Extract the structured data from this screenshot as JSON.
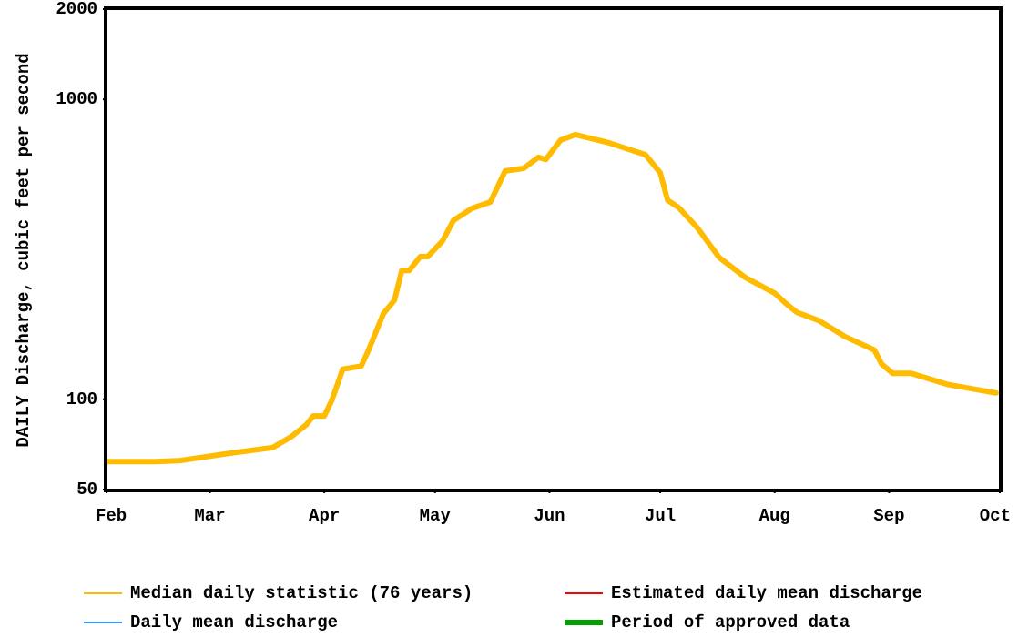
{
  "chart_data": {
    "type": "line",
    "ylabel": "DAILY Discharge, cubic feet per second",
    "yscale": "log",
    "ylim": [
      50,
      2000
    ],
    "yticks": [
      50,
      100,
      1000,
      2000
    ],
    "xlim": [
      0,
      242
    ],
    "xticks": [
      {
        "value": 0,
        "label": "Feb"
      },
      {
        "value": 28,
        "label": "Mar"
      },
      {
        "value": 59,
        "label": "Apr"
      },
      {
        "value": 89,
        "label": "May"
      },
      {
        "value": 120,
        "label": "Jun"
      },
      {
        "value": 150,
        "label": "Jul"
      },
      {
        "value": 181,
        "label": "Aug"
      },
      {
        "value": 212,
        "label": "Sep"
      },
      {
        "value": 242,
        "label": "Oct"
      }
    ],
    "x": [
      0,
      13,
      20,
      33,
      45,
      50,
      54,
      56,
      59,
      61,
      64,
      69,
      71,
      75,
      78,
      80,
      82,
      85,
      87,
      91,
      94,
      99,
      104,
      108,
      113,
      117,
      119,
      123,
      127,
      136,
      146,
      150,
      152,
      155,
      160,
      166,
      173,
      181,
      184,
      187,
      193,
      200,
      208,
      210,
      213,
      218,
      228,
      241
    ],
    "series": [
      {
        "name": "Median daily statistic (76 years)",
        "color": "#ffbb00",
        "values": [
          62,
          62,
          62.5,
          66,
          69,
          75,
          82,
          88,
          88,
          99,
          126,
          129,
          146,
          193,
          214,
          269,
          269,
          299,
          299,
          337,
          395,
          433,
          455,
          577,
          589,
          641,
          630,
          731,
          763,
          717,
          654,
          569,
          461,
          436,
          374,
          297,
          255,
          226,
          209,
          195,
          183,
          162,
          146,
          131,
          122,
          122,
          112,
          105
        ]
      }
    ],
    "legend": [
      {
        "name": "Estimated daily mean discharge",
        "color": "#ff0000"
      },
      {
        "name": "Daily mean discharge",
        "color": "#3399ff"
      },
      {
        "name": "Period of approved data",
        "color": "#00a000"
      }
    ]
  }
}
